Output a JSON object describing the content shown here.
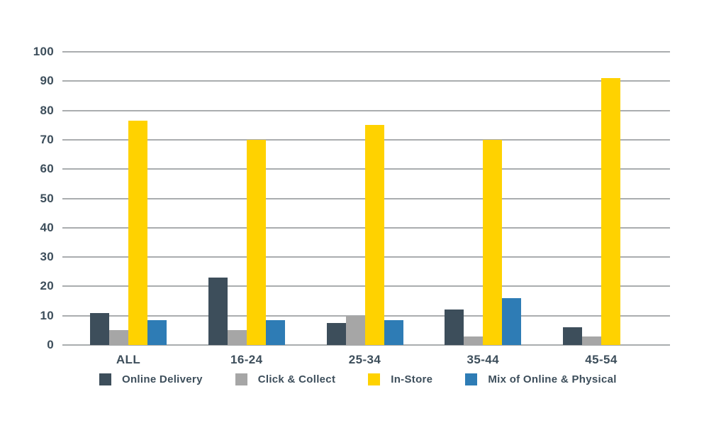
{
  "chart_data": {
    "type": "bar",
    "title": "",
    "xlabel": "",
    "ylabel": "",
    "categories": [
      "ALL",
      "16-24",
      "25-34",
      "35-44",
      "45-54"
    ],
    "series": [
      {
        "name": "Online Delivery",
        "color": "#3d4e5b",
        "values": [
          11,
          23,
          7.5,
          12,
          6
        ]
      },
      {
        "name": "Click & Collect",
        "color": "#a6a6a6",
        "values": [
          5,
          5,
          10,
          3,
          3
        ]
      },
      {
        "name": "In-Store",
        "color": "#ffd200",
        "values": [
          76.5,
          70,
          75,
          70,
          91
        ]
      },
      {
        "name": "Mix of Online & Physical",
        "color": "#2e7cb5",
        "values": [
          8.5,
          8.5,
          8.5,
          16,
          0
        ]
      }
    ],
    "ylim": [
      0,
      100
    ],
    "yticks": [
      0,
      10,
      20,
      30,
      40,
      50,
      60,
      70,
      80,
      90,
      100
    ],
    "grid": true,
    "legend_position": "bottom"
  },
  "colors": {
    "background": "#ffffff",
    "gridline": "#aaadaf",
    "axis_text": "#3d4e5b"
  }
}
